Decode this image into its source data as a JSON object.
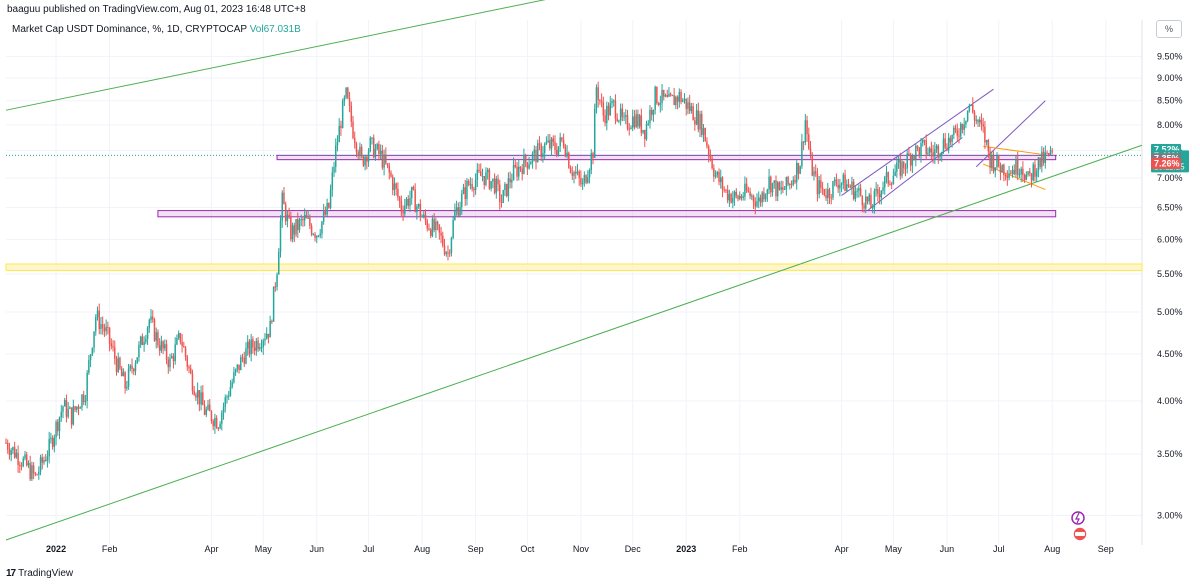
{
  "header": {
    "published": "baaguu published on TradingView.com, Aug 01, 2023 16:48 UTC+8"
  },
  "legend": {
    "symbol": "Market Cap USDT Dominance, %, 1D, CRYPTOCAP",
    "vol_label": "Vol",
    "vol_value": "67.031B"
  },
  "scale_button": "%",
  "footer": {
    "brand": "TradingView",
    "logo": "17"
  },
  "colors": {
    "up": "#26a69a",
    "down": "#ef5350",
    "ghost": "#b2b5be",
    "trend_green": "#4caf50",
    "channel_purple": "#7e57c2",
    "zone_purple": "#9c27b0",
    "zone_fill": "#e1bee7",
    "zone_yellow": "#ffeb3b",
    "wedge_orange": "#ff9800"
  },
  "price_badges": [
    {
      "text": "7.52%",
      "y": 7.52,
      "color": "#26a69a"
    },
    {
      "text": "7.41%",
      "y": 7.41,
      "color": "#26a69a",
      "sub": "15:11:25"
    },
    {
      "text": "7.35%",
      "y": 7.35,
      "color": "#787b86"
    },
    {
      "text": "7.26%",
      "y": 7.26,
      "color": "#ef5350"
    }
  ],
  "chart_data": {
    "type": "candlestick",
    "title": "",
    "yscale": "log",
    "ylim": [
      2.82,
      9.9
    ],
    "xlim": [
      "2021-12-03",
      "2023-09-22"
    ],
    "y_ticks": [
      "3.00%",
      "3.50%",
      "4.00%",
      "4.50%",
      "5.00%",
      "5.50%",
      "6.00%",
      "6.50%",
      "7.00%",
      "7.50%",
      "8.00%",
      "8.50%",
      "9.00%",
      "9.50%"
    ],
    "y_tick_values": [
      3.0,
      3.5,
      4.0,
      4.5,
      5.0,
      5.5,
      6.0,
      6.5,
      7.0,
      7.5,
      8.0,
      8.5,
      9.0,
      9.5
    ],
    "x_ticks": [
      {
        "label": "2022",
        "date": "2022-01-01",
        "bold": true
      },
      {
        "label": "Feb",
        "date": "2022-02-01"
      },
      {
        "label": "Apr",
        "date": "2022-04-01"
      },
      {
        "label": "May",
        "date": "2022-05-01"
      },
      {
        "label": "Jun",
        "date": "2022-06-01"
      },
      {
        "label": "Jul",
        "date": "2022-07-01"
      },
      {
        "label": "Aug",
        "date": "2022-08-01"
      },
      {
        "label": "Sep",
        "date": "2022-09-01"
      },
      {
        "label": "Oct",
        "date": "2022-10-01"
      },
      {
        "label": "Nov",
        "date": "2022-11-01"
      },
      {
        "label": "Dec",
        "date": "2022-12-01"
      },
      {
        "label": "2023",
        "date": "2023-01-01",
        "bold": true
      },
      {
        "label": "Feb",
        "date": "2023-02-01"
      },
      {
        "label": "Apr",
        "date": "2023-04-01"
      },
      {
        "label": "May",
        "date": "2023-05-01"
      },
      {
        "label": "Jun",
        "date": "2023-06-01"
      },
      {
        "label": "Jul",
        "date": "2023-07-01"
      },
      {
        "label": "Aug",
        "date": "2023-08-01"
      },
      {
        "label": "Sep",
        "date": "2023-09-01"
      }
    ],
    "close_anchors": [
      [
        "2021-12-03",
        3.6
      ],
      [
        "2021-12-12",
        3.45
      ],
      [
        "2021-12-20",
        3.3
      ],
      [
        "2021-12-28",
        3.55
      ],
      [
        "2022-01-05",
        3.95
      ],
      [
        "2022-01-10",
        3.85
      ],
      [
        "2022-01-18",
        4.1
      ],
      [
        "2022-01-24",
        4.95
      ],
      [
        "2022-01-30",
        4.75
      ],
      [
        "2022-02-05",
        4.4
      ],
      [
        "2022-02-10",
        4.15
      ],
      [
        "2022-02-18",
        4.55
      ],
      [
        "2022-02-24",
        4.9
      ],
      [
        "2022-03-01",
        4.65
      ],
      [
        "2022-03-08",
        4.4
      ],
      [
        "2022-03-14",
        4.7
      ],
      [
        "2022-03-20",
        4.25
      ],
      [
        "2022-03-28",
        3.9
      ],
      [
        "2022-04-05",
        3.8
      ],
      [
        "2022-04-12",
        4.15
      ],
      [
        "2022-04-20",
        4.5
      ],
      [
        "2022-04-28",
        4.65
      ],
      [
        "2022-05-05",
        4.8
      ],
      [
        "2022-05-09",
        5.6
      ],
      [
        "2022-05-12",
        6.6
      ],
      [
        "2022-05-17",
        6.1
      ],
      [
        "2022-05-25",
        6.3
      ],
      [
        "2022-06-01",
        6.1
      ],
      [
        "2022-06-08",
        6.5
      ],
      [
        "2022-06-12",
        7.5
      ],
      [
        "2022-06-16",
        8.3
      ],
      [
        "2022-06-18",
        8.6
      ],
      [
        "2022-06-22",
        7.9
      ],
      [
        "2022-06-27",
        7.3
      ],
      [
        "2022-07-02",
        7.6
      ],
      [
        "2022-07-08",
        7.4
      ],
      [
        "2022-07-14",
        7.0
      ],
      [
        "2022-07-20",
        6.5
      ],
      [
        "2022-07-26",
        6.7
      ],
      [
        "2022-08-02",
        6.3
      ],
      [
        "2022-08-10",
        6.1
      ],
      [
        "2022-08-16",
        5.8
      ],
      [
        "2022-08-20",
        6.4
      ],
      [
        "2022-08-28",
        6.9
      ],
      [
        "2022-09-05",
        7.05
      ],
      [
        "2022-09-12",
        6.9
      ],
      [
        "2022-09-16",
        6.6
      ],
      [
        "2022-09-22",
        7.05
      ],
      [
        "2022-09-28",
        7.25
      ],
      [
        "2022-10-05",
        7.4
      ],
      [
        "2022-10-12",
        7.6
      ],
      [
        "2022-10-18",
        7.55
      ],
      [
        "2022-10-22",
        7.7
      ],
      [
        "2022-10-26",
        7.2
      ],
      [
        "2022-11-02",
        6.85
      ],
      [
        "2022-11-08",
        7.5
      ],
      [
        "2022-11-10",
        8.8
      ],
      [
        "2022-11-14",
        8.2
      ],
      [
        "2022-11-20",
        8.4
      ],
      [
        "2022-11-26",
        8.0
      ],
      [
        "2022-12-02",
        8.15
      ],
      [
        "2022-12-08",
        7.9
      ],
      [
        "2022-12-14",
        8.6
      ],
      [
        "2022-12-22",
        8.45
      ],
      [
        "2022-12-28",
        8.6
      ],
      [
        "2023-01-04",
        8.3
      ],
      [
        "2023-01-10",
        8.0
      ],
      [
        "2023-01-14",
        7.5
      ],
      [
        "2023-01-18",
        7.05
      ],
      [
        "2023-01-24",
        6.75
      ],
      [
        "2023-01-30",
        6.65
      ],
      [
        "2023-02-05",
        6.75
      ],
      [
        "2023-02-12",
        6.6
      ],
      [
        "2023-02-18",
        6.95
      ],
      [
        "2023-02-24",
        6.75
      ],
      [
        "2023-03-02",
        6.9
      ],
      [
        "2023-03-08",
        7.3
      ],
      [
        "2023-03-11",
        8.1
      ],
      [
        "2023-03-14",
        7.25
      ],
      [
        "2023-03-18",
        6.85
      ],
      [
        "2023-03-24",
        6.75
      ],
      [
        "2023-03-30",
        6.95
      ],
      [
        "2023-04-06",
        6.85
      ],
      [
        "2023-04-12",
        6.7
      ],
      [
        "2023-04-18",
        6.52
      ],
      [
        "2023-04-24",
        6.85
      ],
      [
        "2023-04-30",
        7.05
      ],
      [
        "2023-05-06",
        7.2
      ],
      [
        "2023-05-12",
        7.45
      ],
      [
        "2023-05-18",
        7.55
      ],
      [
        "2023-05-24",
        7.45
      ],
      [
        "2023-05-30",
        7.65
      ],
      [
        "2023-06-05",
        7.75
      ],
      [
        "2023-06-10",
        8.05
      ],
      [
        "2023-06-14",
        8.4
      ],
      [
        "2023-06-18",
        8.1
      ],
      [
        "2023-06-22",
        7.85
      ],
      [
        "2023-06-26",
        7.35
      ],
      [
        "2023-07-02",
        7.2
      ],
      [
        "2023-07-08",
        7.15
      ],
      [
        "2023-07-14",
        7.25
      ],
      [
        "2023-07-18",
        6.95
      ],
      [
        "2023-07-22",
        7.2
      ],
      [
        "2023-07-28",
        7.35
      ],
      [
        "2023-08-01",
        7.41
      ]
    ],
    "overlays": {
      "zones": [
        {
          "from": "2022-05-09",
          "to": "2023-08-03",
          "lo": 7.33,
          "hi": 7.41,
          "color": "#9c27b0"
        },
        {
          "from": "2022-03-01",
          "to": "2023-08-03",
          "lo": 6.35,
          "hi": 6.45,
          "color": "#9c27b0"
        },
        {
          "from": "2021-12-03",
          "to": "2023-09-22",
          "lo": 5.55,
          "hi": 5.64,
          "color": "#ffeb3b"
        }
      ],
      "lines": [
        {
          "from": [
            "2021-12-03",
            8.3
          ],
          "to": [
            "2022-11-05",
            11.2
          ],
          "color": "#4caf50"
        },
        {
          "from": [
            "2021-12-03",
            2.82
          ],
          "to": [
            "2023-09-22",
            7.6
          ],
          "color": "#4caf50"
        },
        {
          "from": [
            "2023-04-01",
            6.7
          ],
          "to": [
            "2023-06-28",
            8.75
          ],
          "color": "#7e57c2"
        },
        {
          "from": [
            "2023-04-16",
            6.45
          ],
          "to": [
            "2023-06-10",
            7.75
          ],
          "color": "#7e57c2"
        },
        {
          "from": [
            "2023-06-18",
            7.2
          ],
          "to": [
            "2023-07-28",
            8.5
          ],
          "color": "#7e57c2"
        },
        {
          "from": [
            "2023-06-22",
            7.58
          ],
          "to": [
            "2023-07-28",
            7.42
          ],
          "color": "#ff9800"
        },
        {
          "from": [
            "2023-06-22",
            7.25
          ],
          "to": [
            "2023-07-28",
            6.8
          ],
          "color": "#ff9800"
        }
      ]
    }
  }
}
